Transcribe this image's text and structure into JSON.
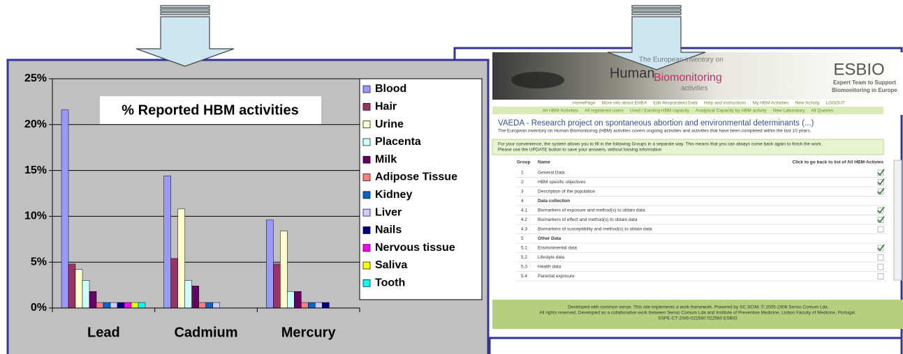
{
  "chart_data": {
    "type": "bar",
    "title": "% Reported HBM activities",
    "categories": [
      "Lead",
      "Cadmium",
      "Mercury"
    ],
    "series": [
      {
        "name": "Blood",
        "color": "#9999ff",
        "values": [
          21.6,
          14.4,
          9.6
        ]
      },
      {
        "name": "Hair",
        "color": "#993366",
        "values": [
          4.8,
          5.4,
          4.8
        ]
      },
      {
        "name": "Urine",
        "color": "#ffffcc",
        "values": [
          4.2,
          10.8,
          8.4
        ]
      },
      {
        "name": "Placenta",
        "color": "#ccffff",
        "values": [
          3.0,
          3.0,
          1.8
        ]
      },
      {
        "name": "Milk",
        "color": "#660066",
        "values": [
          1.8,
          2.4,
          1.8
        ]
      },
      {
        "name": "Adipose Tissue",
        "color": "#ff8080",
        "values": [
          0.6,
          0.6,
          0.6
        ]
      },
      {
        "name": "Kidney",
        "color": "#0066cc",
        "values": [
          0.6,
          0.6,
          0.6
        ]
      },
      {
        "name": "Liver",
        "color": "#ccccff",
        "values": [
          0.6,
          0.6,
          0.6
        ]
      },
      {
        "name": "Nails",
        "color": "#000080",
        "values": [
          0.6,
          0,
          0.6
        ]
      },
      {
        "name": "Nervous tissue",
        "color": "#ff00ff",
        "values": [
          0.6,
          0,
          0
        ]
      },
      {
        "name": "Saliva",
        "color": "#ffff00",
        "values": [
          0.6,
          0,
          0
        ]
      },
      {
        "name": "Tooth",
        "color": "#00ffff",
        "values": [
          0.6,
          0,
          0
        ]
      }
    ],
    "ylim": [
      0,
      25
    ],
    "yticks": [
      {
        "value": 0,
        "label": "0%"
      },
      {
        "value": 5,
        "label": "5%"
      },
      {
        "value": 10,
        "label": "10%"
      },
      {
        "value": 15,
        "label": "15%"
      },
      {
        "value": 20,
        "label": "20%"
      },
      {
        "value": 25,
        "label": "25%"
      }
    ],
    "grid": true
  },
  "website": {
    "header": {
      "top": "The European inventory on",
      "brand1": "Human",
      "brand2": "Biomonitoring",
      "brand3": "activities",
      "logo": "ESBIO",
      "logo_sub1": "Expert Team to Support",
      "logo_sub2": "Biomonitoring in Europe"
    },
    "nav": [
      "HomePage",
      "More info about EHBA",
      "Edit Respondent Data",
      "Help and instructions",
      "My HBM Activities",
      "New Activity",
      "LOGOUT"
    ],
    "nav2": [
      "All HBM-Activities",
      "All registered users",
      "Used / Existing HBM capacity",
      "Analytical Capacity by HBM activity",
      "New Laboratory",
      "All Queries"
    ],
    "title": "VAEDA - Research project on spontaneous abortion and environmental determinants (...)",
    "intro": "The European inventory on Human Biomonitoring (HBM) activities covers ongoing activities and activities that have been completed within the last 10 years.",
    "notice": [
      "For your convenience, the system allows you to fill in the following Groups in a separate way. This means that you can always come back again to finish the work.",
      "Please use the UPDATE button to save your answers, without loosing information"
    ],
    "table": {
      "headers": [
        "Group",
        "Name",
        "Click to go back to list of All HBM-Activies"
      ],
      "rows": [
        {
          "group": "1",
          "name": "General Data",
          "check": true
        },
        {
          "group": "2",
          "name": "HBM specific objectives",
          "check": true
        },
        {
          "group": "3",
          "name": "Description of the population",
          "check": true
        },
        {
          "group": "4",
          "name": "Data collection",
          "check": null
        },
        {
          "group": "4.1",
          "name": "Biomarkers of exposure and method(s) to obtain data",
          "check": true
        },
        {
          "group": "4.2",
          "name": "Biomarkers of effect and method(s) to obtain data",
          "check": true
        },
        {
          "group": "4.3",
          "name": "Biomarkers of susceptibility and method(s) to obtain data",
          "check": false
        },
        {
          "group": "5",
          "name": "Other Data",
          "check": null
        },
        {
          "group": "5.1",
          "name": "Environmental data",
          "check": true
        },
        {
          "group": "5.2",
          "name": "Lifestyle data",
          "check": false
        },
        {
          "group": "5.3",
          "name": "Health data",
          "check": false
        },
        {
          "group": "5.4",
          "name": "Parental exposure",
          "check": false
        }
      ]
    },
    "footer": [
      "Developed with common sense. This site implements a work framework. Powered by SC.SCIM. © 2005-2008 Senso Comum Lda",
      "All rights reserved. Developed as a collaborative work between Senso Comum Lda and Institute of Preventive Medicine, Lisbon Faculty of Medicine, Portugal.",
      "SSPE-CT-2005-022560 022560 ESBIO"
    ]
  }
}
